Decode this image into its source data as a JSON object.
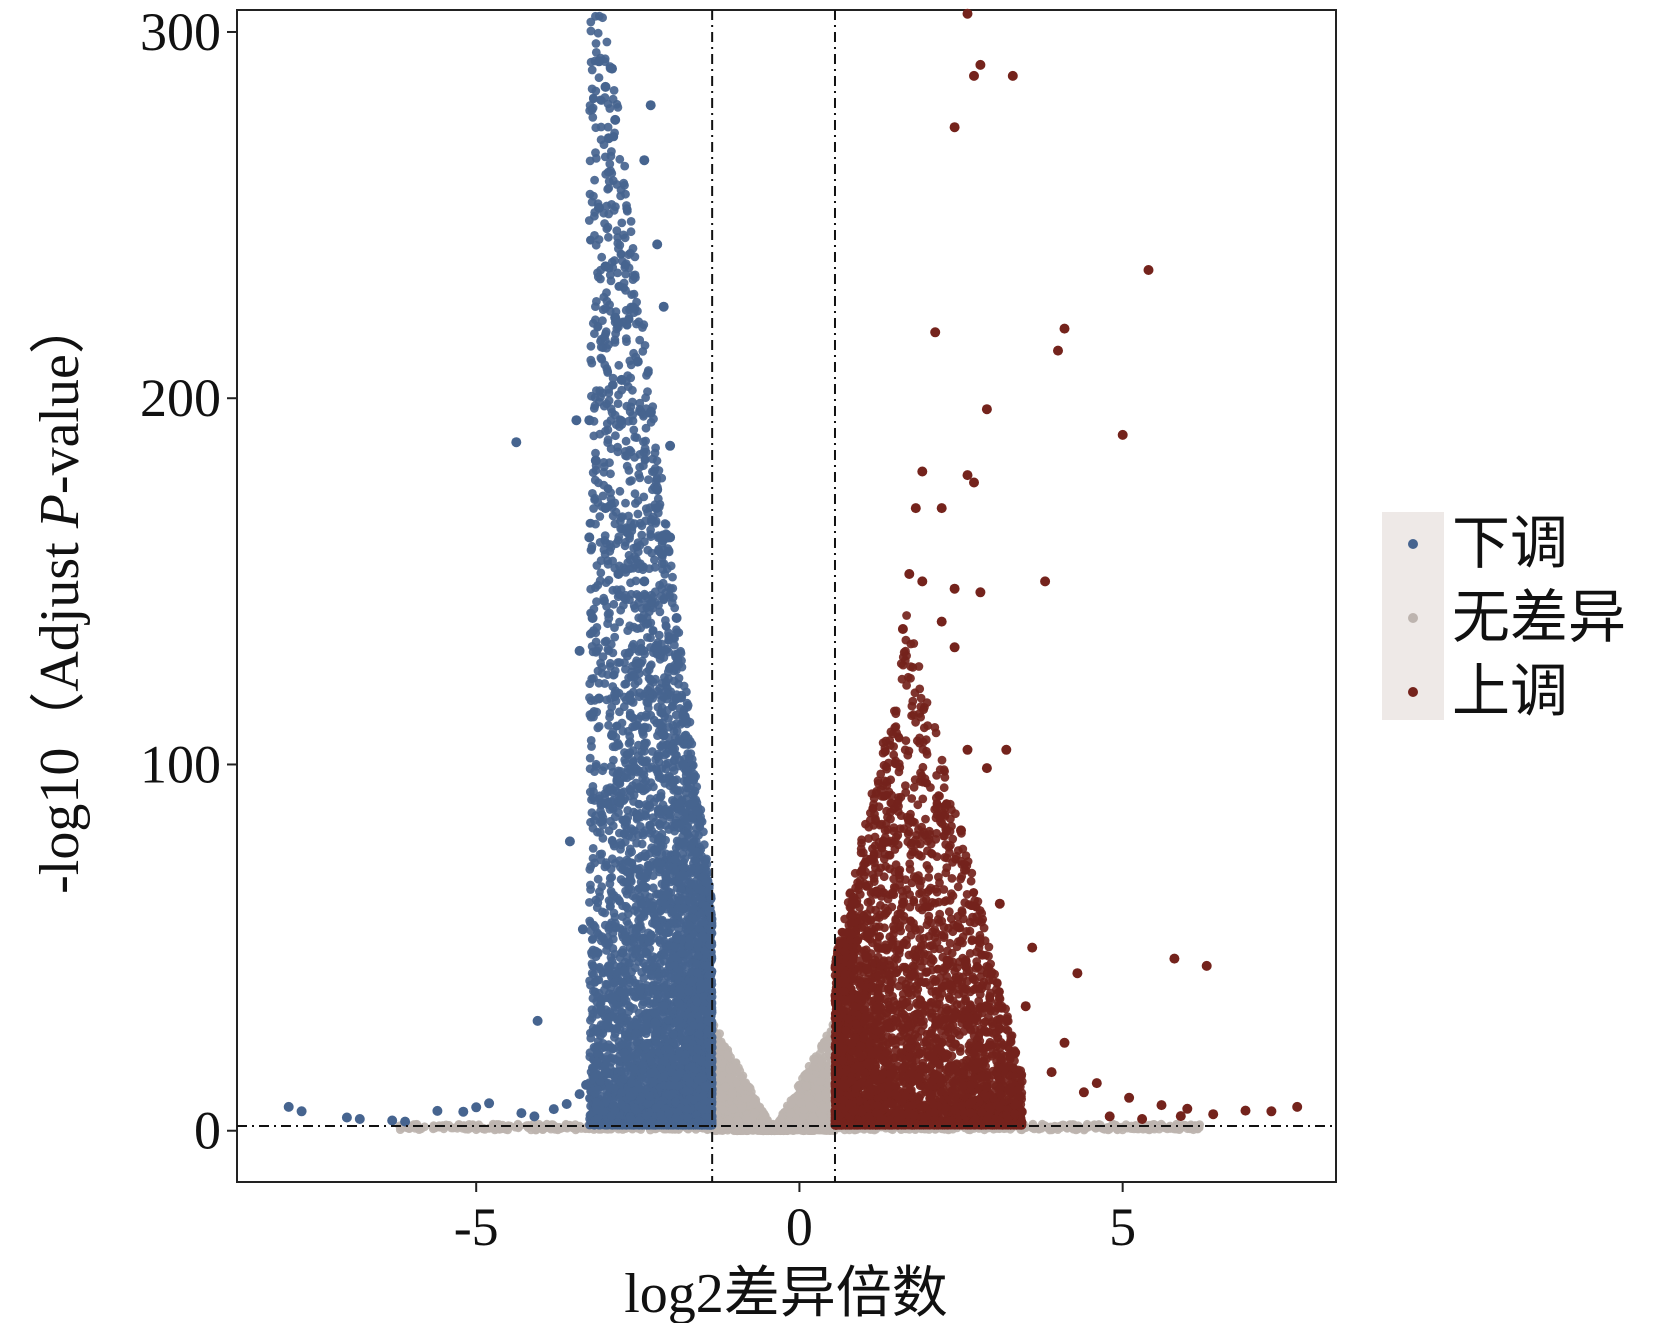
{
  "chart_data": {
    "type": "scatter",
    "xlabel": "log2差异倍数",
    "ylabel_parts": [
      "-log10（Adjust ",
      "P",
      "-value）"
    ],
    "xlim": [
      -8.7,
      8.3
    ],
    "ylim": [
      -14,
      306
    ],
    "x_ticks": [
      {
        "value": -5,
        "label": "-5"
      },
      {
        "value": 0,
        "label": "0"
      },
      {
        "value": 5,
        "label": "5"
      }
    ],
    "y_ticks": [
      {
        "value": 0,
        "label": "0"
      },
      {
        "value": 100,
        "label": "100"
      },
      {
        "value": 200,
        "label": "200"
      },
      {
        "value": 300,
        "label": "300"
      }
    ],
    "thresholds": {
      "x": [
        -1.35,
        0.55
      ],
      "y": 1.3
    },
    "grid": false,
    "legend_position": "right",
    "colors": {
      "down": "#46648F",
      "none": "#BDB4AF",
      "up": "#74231C",
      "legend_background": "#EEE9E7",
      "panel_background": "#FFFFFF",
      "axis": "#222222"
    },
    "series": [
      {
        "name": "下调",
        "key": "down",
        "points": [
          [
            -7.9,
            6.5
          ],
          [
            -7.7,
            5.3
          ],
          [
            -7.0,
            3.6
          ],
          [
            -6.8,
            3.2
          ],
          [
            -6.3,
            2.8
          ],
          [
            -6.1,
            2.5
          ],
          [
            -5.6,
            5.4
          ],
          [
            -5.2,
            5.2
          ],
          [
            -5.0,
            6.4
          ],
          [
            -4.8,
            7.5
          ],
          [
            -4.3,
            4.8
          ],
          [
            -4.1,
            3.9
          ],
          [
            -3.8,
            5.9
          ],
          [
            -3.6,
            7.3
          ],
          [
            -3.4,
            10
          ],
          [
            -3.3,
            12.5
          ],
          [
            -4.38,
            188
          ],
          [
            -3.55,
            79
          ],
          [
            -3.35,
            55
          ],
          [
            -4.05,
            30
          ],
          [
            -3.45,
            194
          ],
          [
            -3.25,
            194
          ],
          [
            -3.25,
            162
          ],
          [
            -3.4,
            131
          ],
          [
            -3.1,
            292
          ],
          [
            -2.9,
            290
          ],
          [
            -3.0,
            285
          ],
          [
            -2.85,
            276
          ],
          [
            -2.95,
            271
          ],
          [
            -3.1,
            252
          ],
          [
            -3.0,
            236
          ],
          [
            -2.85,
            222
          ],
          [
            -2.75,
            205
          ],
          [
            -3.15,
            183
          ],
          [
            -3.0,
            170
          ],
          [
            -2.8,
            152
          ],
          [
            -3.2,
            140
          ],
          [
            -3.1,
            118
          ],
          [
            -2.9,
            108
          ],
          [
            -2.3,
            280
          ],
          [
            -2.4,
            265
          ],
          [
            -2.2,
            242
          ],
          [
            -2.1,
            225
          ],
          [
            -2.5,
            210
          ],
          [
            -2.3,
            196
          ],
          [
            -2.0,
            187
          ],
          [
            -2.2,
            175
          ],
          [
            -2.0,
            162
          ],
          [
            -2.4,
            150
          ],
          [
            -1.9,
            140
          ],
          [
            -2.2,
            132
          ],
          [
            -1.9,
            118
          ],
          [
            -2.1,
            108
          ],
          [
            -1.8,
            100
          ],
          [
            -1.7,
            89
          ],
          [
            -1.6,
            76
          ],
          [
            -1.55,
            66
          ],
          [
            -1.5,
            53
          ],
          [
            -1.42,
            45
          ],
          [
            -1.4,
            30
          ],
          [
            -1.38,
            20
          ],
          [
            -1.45,
            12
          ],
          [
            -1.5,
            6
          ]
        ]
      },
      {
        "name": "无差异",
        "key": "none",
        "points": []
      },
      {
        "name": "上调",
        "key": "up",
        "points": [
          [
            2.6,
            305
          ],
          [
            2.8,
            291
          ],
          [
            2.7,
            288
          ],
          [
            3.3,
            288
          ],
          [
            2.4,
            274
          ],
          [
            5.4,
            235
          ],
          [
            2.1,
            218
          ],
          [
            4.1,
            219
          ],
          [
            4.0,
            213
          ],
          [
            2.9,
            197
          ],
          [
            5.0,
            190
          ],
          [
            1.9,
            180
          ],
          [
            2.6,
            179
          ],
          [
            2.7,
            177
          ],
          [
            1.8,
            170
          ],
          [
            2.2,
            170
          ],
          [
            3.8,
            150
          ],
          [
            1.7,
            152
          ],
          [
            1.9,
            150
          ],
          [
            2.4,
            148
          ],
          [
            2.8,
            147
          ],
          [
            2.2,
            139
          ],
          [
            1.6,
            137
          ],
          [
            2.4,
            132
          ],
          [
            3.2,
            104
          ],
          [
            2.9,
            99
          ],
          [
            2.6,
            104
          ],
          [
            5.8,
            47
          ],
          [
            6.3,
            45
          ],
          [
            4.3,
            43
          ],
          [
            3.6,
            50
          ],
          [
            4.1,
            24
          ],
          [
            4.6,
            13
          ],
          [
            5.1,
            9
          ],
          [
            5.6,
            7
          ],
          [
            6.0,
            6
          ],
          [
            6.4,
            4.5
          ],
          [
            6.9,
            5.5
          ],
          [
            7.3,
            5.3
          ],
          [
            7.7,
            6.5
          ],
          [
            4.8,
            3.9
          ],
          [
            5.3,
            3.2
          ],
          [
            5.9,
            4.0
          ],
          [
            3.9,
            16
          ],
          [
            4.4,
            10.5
          ],
          [
            3.5,
            34
          ],
          [
            3.1,
            62
          ],
          [
            2.5,
            82
          ]
        ]
      }
    ]
  }
}
